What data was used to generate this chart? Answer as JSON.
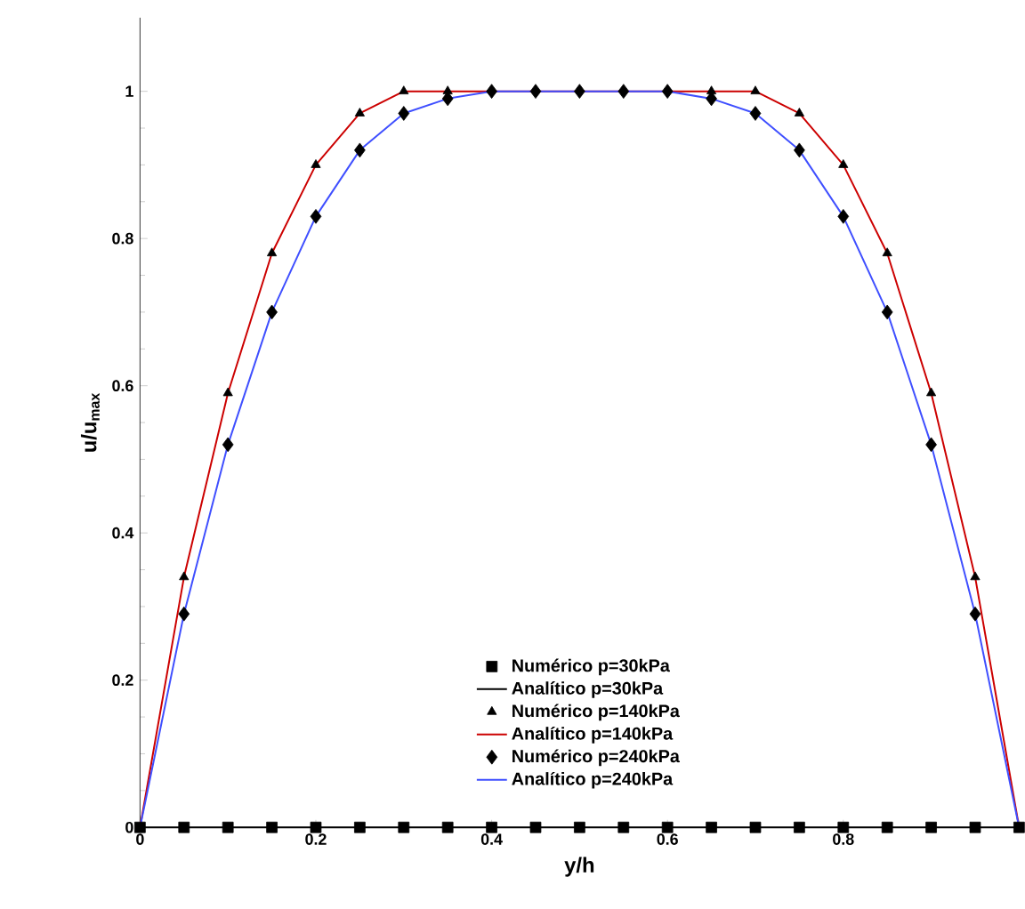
{
  "chart_data": {
    "type": "scatter",
    "xlabel": "y/h",
    "ylabel": "u/u$_{max}$",
    "xlim": [
      0,
      1
    ],
    "ylim": [
      0,
      1.1
    ],
    "xticks": [
      0,
      0.2,
      0.4,
      0.6,
      0.8,
      {
        "value": 1,
        "label": null
      }
    ],
    "yticks": [
      0,
      0.2,
      0.4,
      0.6,
      0.8,
      1
    ],
    "x": [
      0,
      0.05,
      0.1,
      0.15,
      0.2,
      0.25,
      0.3,
      0.35,
      0.4,
      0.45,
      0.5,
      0.55,
      0.6,
      0.65,
      0.7,
      0.75,
      0.8,
      0.85,
      0.9,
      0.95,
      1
    ],
    "legend": "bottom",
    "grid": false,
    "series": [
      {
        "name": "Numérico p=30kPa",
        "marker": "square",
        "color": "#000000",
        "values": [
          0,
          0,
          0,
          0,
          0,
          0,
          0,
          0,
          0,
          0,
          0,
          0,
          0,
          0,
          0,
          0,
          0,
          0,
          0,
          0,
          0
        ]
      },
      {
        "name": "Analítico p=30kPa",
        "type": "line",
        "marker": "none",
        "color": "#000000",
        "values": [
          0,
          0,
          0,
          0,
          0,
          0,
          0,
          0,
          0,
          0,
          0,
          0,
          0,
          0,
          0,
          0,
          0,
          0,
          0,
          0,
          0
        ]
      },
      {
        "name": "Numérico p=140kPa",
        "marker": "triangle",
        "color": "#000000",
        "values": [
          null,
          0.34,
          0.59,
          0.78,
          0.9,
          0.97,
          1,
          1,
          null,
          null,
          null,
          null,
          null,
          1,
          1,
          0.97,
          0.9,
          0.78,
          0.59,
          0.34,
          null
        ]
      },
      {
        "name": "Analítico p=140kPa",
        "type": "line",
        "marker": "none",
        "color": "#cc0000",
        "values": [
          0,
          0.34,
          0.59,
          0.78,
          0.9,
          0.97,
          1,
          1,
          1,
          1,
          1,
          1,
          1,
          1,
          1,
          0.97,
          0.9,
          0.78,
          0.59,
          0.34,
          0
        ]
      },
      {
        "name": "Numérico p=240kPa",
        "marker": "diamond",
        "color": "#000000",
        "values": [
          null,
          0.29,
          0.52,
          0.7,
          0.83,
          0.92,
          0.97,
          0.99,
          1,
          1,
          1,
          1,
          1,
          0.99,
          0.97,
          0.92,
          0.83,
          0.7,
          0.52,
          0.29,
          null
        ]
      },
      {
        "name": "Analítico p=240kPa",
        "type": "line",
        "marker": "none",
        "color": "#3f4fff",
        "values": [
          0,
          0.29,
          0.52,
          0.7,
          0.83,
          0.92,
          0.97,
          0.99,
          1,
          1,
          1,
          1,
          1,
          0.99,
          0.97,
          0.92,
          0.83,
          0.7,
          0.52,
          0.29,
          0
        ]
      }
    ]
  }
}
